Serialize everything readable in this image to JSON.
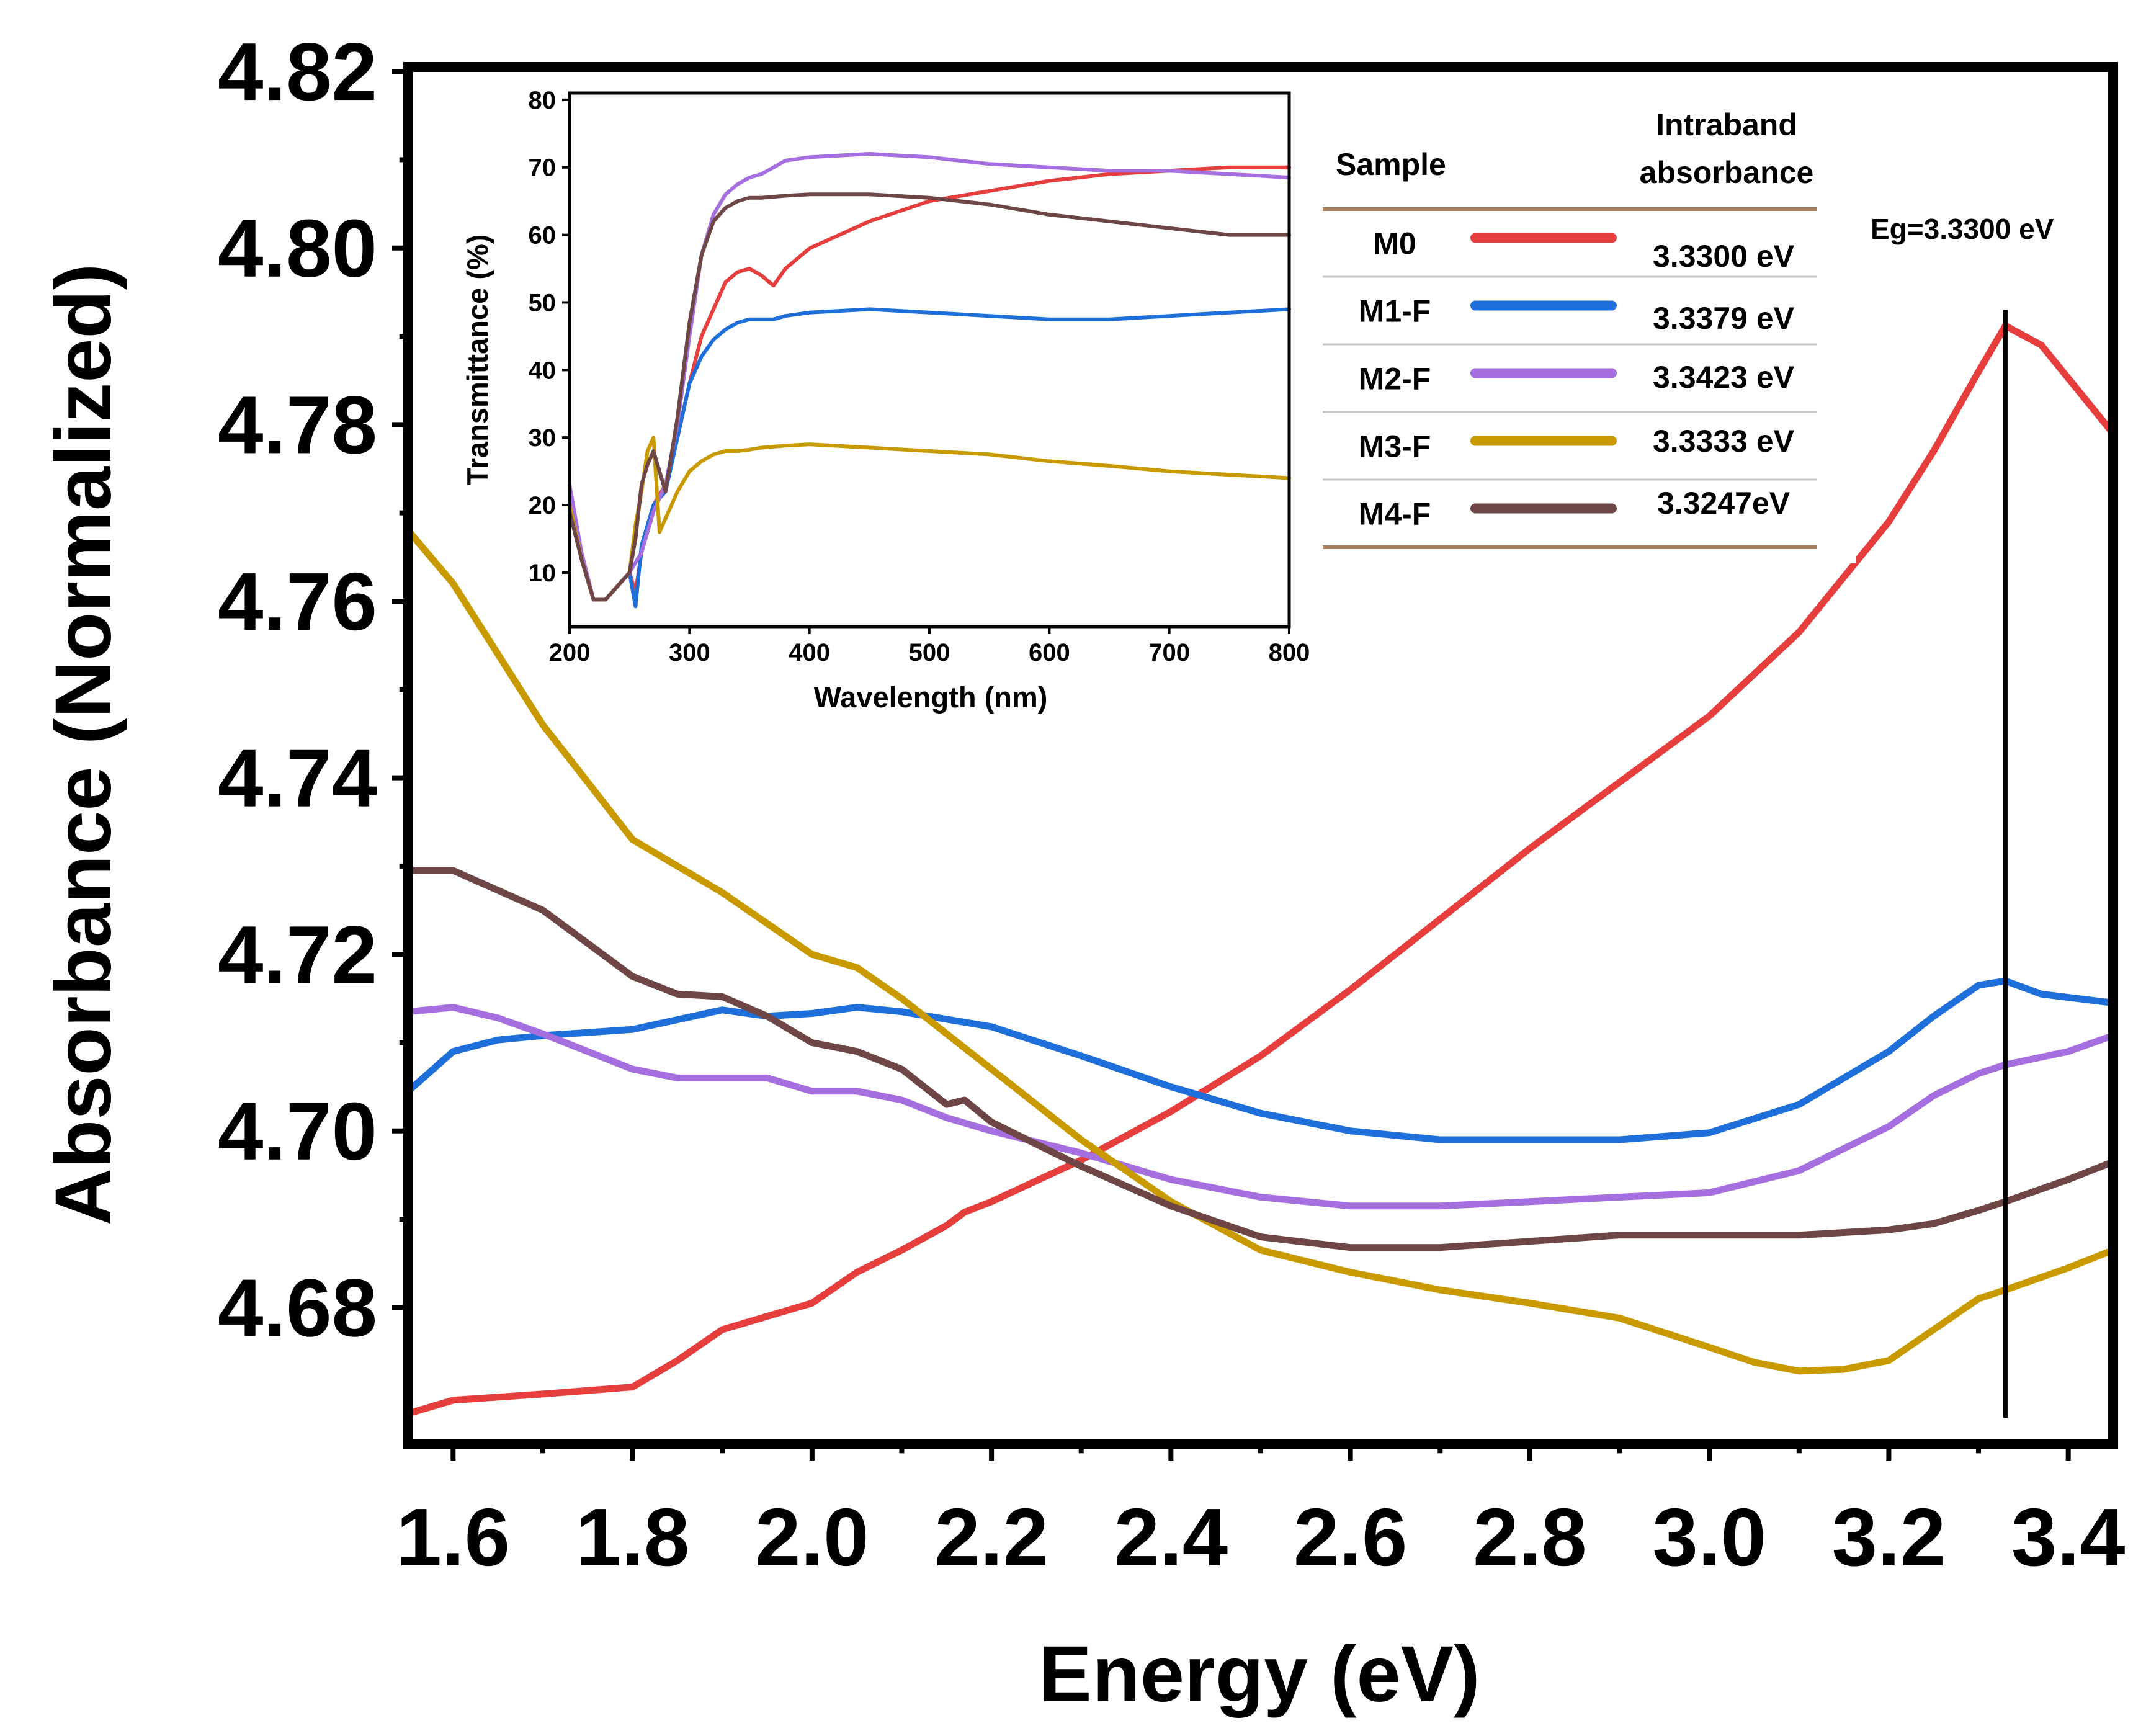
{
  "colors": {
    "M0": "#e63d3d",
    "M1-F": "#1f6fdb",
    "M2-F": "#a66fe0",
    "M3-F": "#c99a00",
    "M4-F": "#6e4646",
    "table_rule": "#a9805f",
    "table_row_rule": "#c8c8c8"
  },
  "chart_data": [
    {
      "id": "main",
      "type": "line",
      "title": "",
      "xlabel": "Energy (eV)",
      "ylabel": "Absorbance (Normalized)",
      "xlim": [
        1.55,
        3.45
      ],
      "ylim": [
        4.6645,
        4.8205
      ],
      "x_ticks": [
        1.6,
        1.8,
        2.0,
        2.2,
        2.4,
        2.6,
        2.8,
        3.0,
        3.2,
        3.4
      ],
      "x_tick_labels": [
        "1.6",
        "1.8",
        "2.0",
        "2.2",
        "2.4",
        "2.6",
        "2.8",
        "3.0",
        "3.2",
        "3.4"
      ],
      "y_ticks": [
        4.68,
        4.7,
        4.72,
        4.74,
        4.76,
        4.78,
        4.8,
        4.82
      ],
      "y_tick_labels": [
        "4.68",
        "4.70",
        "4.72",
        "4.74",
        "4.76",
        "4.78",
        "4.80",
        "4.82"
      ],
      "vline": {
        "x": 3.33,
        "y_range": [
          4.6675,
          4.793
        ],
        "label": "Eg=3.3300 eV"
      },
      "series": [
        {
          "name": "M0",
          "x": [
            1.55,
            1.6,
            1.7,
            1.8,
            1.85,
            1.9,
            1.95,
            2.0,
            2.05,
            2.1,
            2.15,
            2.17,
            2.2,
            2.3,
            2.4,
            2.5,
            2.6,
            2.7,
            2.8,
            2.9,
            3.0,
            3.1,
            3.2,
            3.25,
            3.3,
            3.33,
            3.37,
            3.45
          ],
          "y": [
            4.668,
            4.6695,
            4.6702,
            4.671,
            4.674,
            4.6775,
            4.679,
            4.6805,
            4.684,
            4.6865,
            4.6893,
            4.6908,
            4.692,
            4.6967,
            4.7022,
            4.7085,
            4.716,
            4.724,
            4.732,
            4.7395,
            4.747,
            4.7565,
            4.769,
            4.777,
            4.786,
            4.7912,
            4.789,
            4.779
          ]
        },
        {
          "name": "M1-F",
          "x": [
            1.55,
            1.6,
            1.65,
            1.7,
            1.8,
            1.9,
            1.95,
            2.0,
            2.05,
            2.1,
            2.2,
            2.3,
            2.4,
            2.5,
            2.6,
            2.7,
            2.8,
            2.9,
            3.0,
            3.1,
            3.2,
            3.25,
            3.3,
            3.33,
            3.37,
            3.45
          ],
          "y": [
            4.7045,
            4.709,
            4.7103,
            4.7108,
            4.7115,
            4.7137,
            4.713,
            4.7133,
            4.714,
            4.7135,
            4.7118,
            4.7085,
            4.705,
            4.702,
            4.7,
            4.699,
            4.699,
            4.699,
            4.6998,
            4.703,
            4.709,
            4.713,
            4.7165,
            4.717,
            4.7155,
            4.7145
          ]
        },
        {
          "name": "M2-F",
          "x": [
            1.55,
            1.6,
            1.65,
            1.7,
            1.8,
            1.85,
            1.9,
            1.95,
            2.0,
            2.05,
            2.1,
            2.15,
            2.2,
            2.3,
            2.4,
            2.5,
            2.6,
            2.7,
            2.8,
            2.9,
            3.0,
            3.1,
            3.2,
            3.25,
            3.3,
            3.33,
            3.4,
            3.45
          ],
          "y": [
            4.7135,
            4.714,
            4.7128,
            4.711,
            4.707,
            4.706,
            4.706,
            4.706,
            4.7045,
            4.7045,
            4.7035,
            4.7015,
            4.7,
            4.6975,
            4.6945,
            4.6925,
            4.6915,
            4.6915,
            4.692,
            4.6925,
            4.693,
            4.6955,
            4.7005,
            4.704,
            4.7065,
            4.7075,
            4.709,
            4.7108
          ]
        },
        {
          "name": "M3-F",
          "x": [
            1.55,
            1.6,
            1.7,
            1.8,
            1.9,
            2.0,
            2.05,
            2.1,
            2.2,
            2.3,
            2.4,
            2.5,
            2.6,
            2.7,
            2.8,
            2.9,
            3.0,
            3.05,
            3.1,
            3.15,
            3.2,
            3.25,
            3.3,
            3.33,
            3.4,
            3.45
          ],
          "y": [
            4.768,
            4.762,
            4.746,
            4.733,
            4.727,
            4.72,
            4.7185,
            4.715,
            4.707,
            4.699,
            4.692,
            4.6865,
            4.684,
            4.682,
            4.6805,
            4.6788,
            4.6755,
            4.6738,
            4.6728,
            4.673,
            4.674,
            4.6775,
            4.681,
            4.682,
            4.6845,
            4.6865
          ]
        },
        {
          "name": "M4-F",
          "x": [
            1.55,
            1.6,
            1.7,
            1.8,
            1.85,
            1.9,
            1.95,
            2.0,
            2.05,
            2.1,
            2.15,
            2.17,
            2.2,
            2.3,
            2.4,
            2.5,
            2.6,
            2.7,
            2.8,
            2.9,
            3.0,
            3.1,
            3.2,
            3.25,
            3.3,
            3.33,
            3.4,
            3.45
          ],
          "y": [
            4.7295,
            4.7295,
            4.725,
            4.7175,
            4.7155,
            4.7152,
            4.713,
            4.71,
            4.709,
            4.707,
            4.703,
            4.7035,
            4.701,
            4.696,
            4.6915,
            4.688,
            4.6868,
            4.6868,
            4.6875,
            4.6882,
            4.6882,
            4.6882,
            4.6888,
            4.6895,
            4.691,
            4.692,
            4.6945,
            4.6965
          ]
        }
      ]
    },
    {
      "id": "inset",
      "type": "line",
      "title": "",
      "xlabel": "Wavelength (nm)",
      "ylabel": "Transmittance (%)",
      "xlim": [
        200,
        800
      ],
      "ylim": [
        2,
        81
      ],
      "x_ticks": [
        200,
        300,
        400,
        500,
        600,
        700,
        800
      ],
      "x_tick_labels": [
        "200",
        "300",
        "400",
        "500",
        "600",
        "700",
        "800"
      ],
      "y_ticks": [
        10,
        20,
        30,
        40,
        50,
        60,
        70,
        80
      ],
      "y_tick_labels": [
        "10",
        "20",
        "30",
        "40",
        "50",
        "60",
        "70",
        "80"
      ],
      "series": [
        {
          "name": "M0",
          "x": [
            200,
            210,
            220,
            230,
            240,
            250,
            255,
            260,
            270,
            280,
            290,
            300,
            310,
            320,
            330,
            340,
            350,
            360,
            370,
            380,
            400,
            450,
            500,
            550,
            600,
            650,
            700,
            750,
            800
          ],
          "y": [
            20,
            12,
            6,
            6,
            8,
            10,
            7,
            13,
            20,
            23,
            30,
            38,
            45,
            49,
            53,
            54.5,
            55,
            54,
            52.5,
            55,
            58,
            62,
            65,
            66.5,
            68,
            69,
            69.5,
            70,
            70
          ]
        },
        {
          "name": "M1-F",
          "x": [
            200,
            210,
            220,
            230,
            240,
            250,
            255,
            260,
            270,
            280,
            290,
            300,
            310,
            320,
            330,
            340,
            350,
            370,
            380,
            400,
            450,
            500,
            550,
            600,
            650,
            700,
            750,
            800
          ],
          "y": [
            20,
            12,
            6,
            6,
            8,
            10,
            5,
            14,
            20,
            22,
            30,
            38,
            42,
            44.5,
            46,
            47,
            47.5,
            47.5,
            48,
            48.5,
            49,
            48.5,
            48,
            47.5,
            47.5,
            48,
            48.5,
            49
          ]
        },
        {
          "name": "M2-F",
          "x": [
            200,
            210,
            220,
            230,
            240,
            250,
            260,
            270,
            280,
            290,
            300,
            310,
            320,
            330,
            340,
            350,
            360,
            370,
            380,
            400,
            450,
            500,
            550,
            600,
            650,
            700,
            750,
            800
          ],
          "y": [
            23,
            13,
            6,
            6,
            8,
            10,
            13,
            19,
            23,
            32,
            45,
            57,
            63,
            66,
            67.5,
            68.5,
            69,
            70,
            71,
            71.5,
            72,
            71.5,
            70.5,
            70,
            69.5,
            69.5,
            69,
            68.5
          ]
        },
        {
          "name": "M3-F",
          "x": [
            200,
            210,
            220,
            230,
            240,
            250,
            255,
            260,
            265,
            270,
            275,
            280,
            290,
            300,
            310,
            320,
            330,
            340,
            350,
            360,
            380,
            400,
            450,
            500,
            550,
            600,
            650,
            700,
            750,
            800
          ],
          "y": [
            20,
            12,
            6,
            6,
            8,
            10,
            17,
            22,
            28,
            30,
            16,
            18,
            22,
            25,
            26.5,
            27.5,
            28,
            28,
            28.2,
            28.5,
            28.8,
            29,
            28.5,
            28,
            27.5,
            26.5,
            25.8,
            25,
            24.5,
            24
          ]
        },
        {
          "name": "M4-F",
          "x": [
            200,
            210,
            220,
            230,
            240,
            250,
            255,
            260,
            265,
            270,
            280,
            290,
            300,
            310,
            320,
            330,
            340,
            350,
            360,
            380,
            400,
            450,
            500,
            550,
            600,
            650,
            700,
            750,
            800
          ],
          "y": [
            19,
            12,
            6,
            6,
            8,
            10,
            15,
            23,
            26,
            28,
            22,
            33,
            47,
            57,
            62,
            64,
            65,
            65.5,
            65.5,
            65.8,
            66,
            66,
            65.5,
            64.5,
            63,
            62,
            61,
            60,
            60
          ]
        }
      ]
    }
  ],
  "legend_table": {
    "header_sample": "Sample",
    "header_intraband_line1": "Intraband",
    "header_intraband_line2": "absorbance",
    "rows": [
      {
        "sample": "M0",
        "value": "3.3300 eV"
      },
      {
        "sample": "M1-F",
        "value": "3.3379 eV"
      },
      {
        "sample": "M2-F",
        "value": "3.3423 eV"
      },
      {
        "sample": "M3-F",
        "value": "3.3333 eV"
      },
      {
        "sample": "M4-F",
        "value": "3.3247eV"
      }
    ]
  }
}
